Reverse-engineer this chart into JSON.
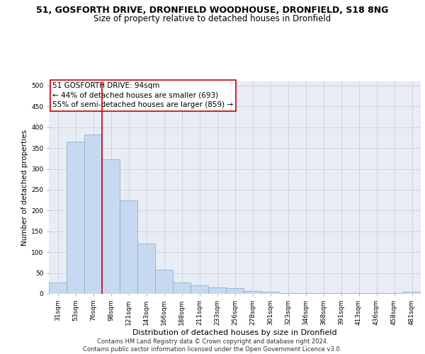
{
  "title_line1": "51, GOSFORTH DRIVE, DRONFIELD WOODHOUSE, DRONFIELD, S18 8NG",
  "title_line2": "Size of property relative to detached houses in Dronfield",
  "xlabel": "Distribution of detached houses by size in Dronfield",
  "ylabel": "Number of detached properties",
  "bar_labels": [
    "31sqm",
    "53sqm",
    "76sqm",
    "98sqm",
    "121sqm",
    "143sqm",
    "166sqm",
    "188sqm",
    "211sqm",
    "233sqm",
    "256sqm",
    "278sqm",
    "301sqm",
    "323sqm",
    "346sqm",
    "368sqm",
    "391sqm",
    "413sqm",
    "436sqm",
    "458sqm",
    "481sqm"
  ],
  "bar_heights": [
    27,
    365,
    383,
    323,
    225,
    120,
    57,
    27,
    20,
    15,
    13,
    6,
    5,
    2,
    1,
    1,
    1,
    1,
    1,
    1,
    5
  ],
  "bar_color": "#c6d9f0",
  "bar_edgecolor": "#7faacc",
  "vline_color": "#cc0000",
  "annotation_text": "51 GOSFORTH DRIVE: 94sqm\n← 44% of detached houses are smaller (693)\n55% of semi-detached houses are larger (859) →",
  "annotation_box_edgecolor": "#cc0000",
  "annotation_box_facecolor": "#ffffff",
  "ylim": [
    0,
    510
  ],
  "yticks": [
    0,
    50,
    100,
    150,
    200,
    250,
    300,
    350,
    400,
    450,
    500
  ],
  "grid_color": "#c8d0de",
  "background_color": "#e8ecf4",
  "footer_text": "Contains HM Land Registry data © Crown copyright and database right 2024.\nContains public sector information licensed under the Open Government Licence v3.0.",
  "title_fontsize": 9,
  "subtitle_fontsize": 8.5,
  "tick_fontsize": 6.5,
  "xlabel_fontsize": 8,
  "ylabel_fontsize": 7.5,
  "annotation_fontsize": 7.5,
  "footer_fontsize": 6
}
